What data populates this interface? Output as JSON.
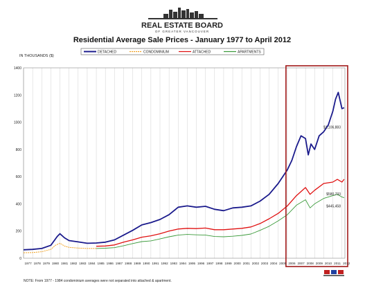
{
  "header": {
    "logo_text": "REAL ESTATE BOARD",
    "logo_subtext": "OF GREATER VANCOUVER",
    "title": "Residential Average Sale Prices  -  January 1977 to April 2012"
  },
  "footer": {
    "note": "NOTE:  From 1977 - 1984 condominium averages were not separated into attached & apartment."
  },
  "colors": {
    "detached": "#1a1a8c",
    "condominium": "#f0a020",
    "attached": "#e01010",
    "apartments": "#3a9a3a",
    "highlight_box": "#a01818",
    "grid": "#d0d0d0"
  },
  "chart_data": {
    "type": "line",
    "ylabel": "IN THOUSANDS ($)",
    "ylim": [
      0,
      1400
    ],
    "yticks": [
      "0",
      "200",
      "400",
      "600",
      "800",
      "1000",
      "1200",
      "1400"
    ],
    "xlim": [
      1977,
      2012.33
    ],
    "xticks": [
      "1977",
      "1978",
      "1979",
      "1980",
      "1981",
      "1982",
      "1983",
      "1984",
      "1985",
      "1986",
      "1987",
      "1988",
      "1989",
      "1990",
      "1991",
      "1992",
      "1993",
      "1994",
      "1995",
      "1996",
      "1997",
      "1998",
      "1999",
      "2000",
      "2001",
      "2002",
      "2003",
      "2004",
      "2005",
      "2006",
      "2007",
      "2008",
      "2009",
      "2010",
      "2011",
      "2012"
    ],
    "grid": "vertical",
    "legend_position": "top",
    "highlight_range": [
      2006.0,
      2012.33
    ],
    "annotations": [
      {
        "text": "$1,106,883",
        "series": "DETACHED",
        "x": 2012.25,
        "y": 1107
      },
      {
        "text": "$580,733",
        "series": "ATTACHED",
        "x": 2012.25,
        "y": 581
      },
      {
        "text": "$445,458",
        "series": "APARTMENTS",
        "x": 2012.25,
        "y": 445
      }
    ],
    "series": [
      {
        "name": "DETACHED",
        "style": "solid",
        "x": [
          1977,
          1978,
          1979,
          1980,
          1980.7,
          1981.0,
          1981.5,
          1982,
          1983,
          1984,
          1985,
          1986,
          1987,
          1988,
          1989,
          1990,
          1991,
          1992,
          1993,
          1994,
          1995,
          1996,
          1997,
          1998,
          1999,
          2000,
          2001,
          2002,
          2003,
          2004,
          2005,
          2006,
          2006.5,
          2007,
          2007.5,
          2008,
          2008.3,
          2008.6,
          2009,
          2009.5,
          2010,
          2010.5,
          2011,
          2011.3,
          2011.6,
          2012,
          2012.25
        ],
        "y": [
          62,
          65,
          72,
          95,
          160,
          180,
          150,
          130,
          120,
          110,
          112,
          118,
          135,
          170,
          205,
          245,
          262,
          285,
          320,
          375,
          385,
          375,
          382,
          360,
          350,
          370,
          375,
          385,
          420,
          470,
          550,
          650,
          720,
          820,
          900,
          880,
          760,
          840,
          800,
          900,
          930,
          980,
          1080,
          1170,
          1220,
          1100,
          1107
        ]
      },
      {
        "name": "CONDOMINIUM",
        "style": "dashed",
        "x": [
          1977,
          1978,
          1979,
          1980,
          1980.5,
          1981.0,
          1981.5,
          1982,
          1983,
          1984,
          1985
        ],
        "y": [
          40,
          42,
          48,
          65,
          95,
          110,
          90,
          80,
          75,
          72,
          72
        ]
      },
      {
        "name": "ATTACHED",
        "style": "solid",
        "x": [
          1985,
          1986,
          1987,
          1988,
          1989,
          1990,
          1991,
          1992,
          1993,
          1994,
          1995,
          1996,
          1997,
          1998,
          1999,
          2000,
          2001,
          2002,
          2003,
          2004,
          2005,
          2006,
          2007,
          2008,
          2008.5,
          2009,
          2010,
          2011,
          2011.5,
          2012,
          2012.25
        ],
        "y": [
          88,
          90,
          98,
          118,
          135,
          155,
          165,
          180,
          200,
          215,
          220,
          218,
          222,
          210,
          210,
          215,
          220,
          230,
          255,
          290,
          330,
          385,
          460,
          520,
          470,
          500,
          550,
          560,
          580,
          560,
          581
        ]
      },
      {
        "name": "APARTMENTS",
        "style": "solid",
        "x": [
          1985,
          1986,
          1987,
          1988,
          1989,
          1990,
          1991,
          1992,
          1993,
          1994,
          1995,
          1996,
          1997,
          1998,
          1999,
          2000,
          2001,
          2002,
          2003,
          2004,
          2005,
          2006,
          2007,
          2008,
          2008.5,
          2009,
          2010,
          2011,
          2011.5,
          2012,
          2012.25
        ],
        "y": [
          72,
          74,
          78,
          92,
          108,
          122,
          128,
          142,
          158,
          170,
          175,
          172,
          170,
          160,
          158,
          162,
          168,
          178,
          205,
          235,
          275,
          320,
          390,
          430,
          370,
          400,
          440,
          460,
          470,
          450,
          445
        ]
      }
    ]
  }
}
